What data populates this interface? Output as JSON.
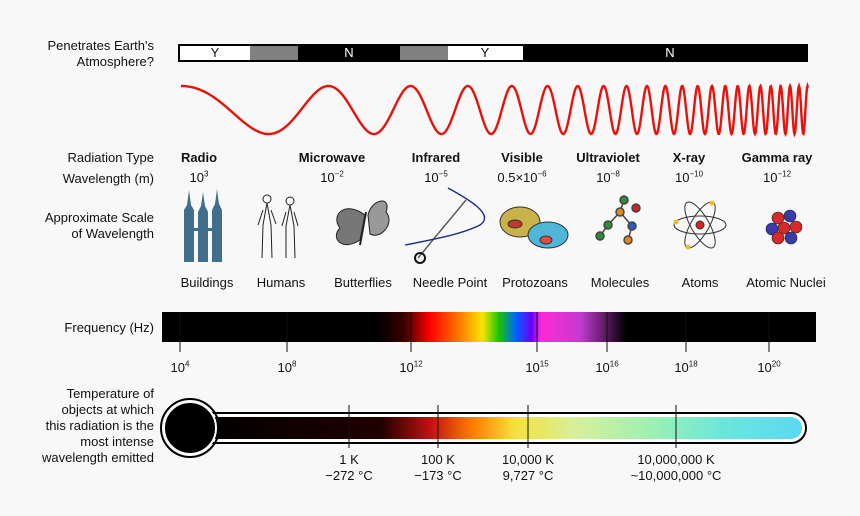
{
  "penetrates": {
    "label_line1": "Penetrates Earth's",
    "label_line2": "Atmosphere?",
    "segments": [
      "Y",
      "N",
      "Y",
      "N"
    ]
  },
  "labels": {
    "radiation_type": "Radiation Type",
    "wavelength": "Wavelength (m)",
    "scale_line1": "Approximate Scale",
    "scale_line2": "of Wavelength",
    "frequency": "Frequency (Hz)",
    "temp_line1": "Temperature of",
    "temp_line2": "objects at which",
    "temp_line3": "this radiation is the",
    "temp_line4": "most intense",
    "temp_line5": "wavelength emitted"
  },
  "radiation": [
    {
      "name": "Radio",
      "base": "10",
      "exp": "3"
    },
    {
      "name": "Microwave",
      "base": "10",
      "exp": "−2"
    },
    {
      "name": "Infrared",
      "base": "10",
      "exp": "−5"
    },
    {
      "name": "Visible",
      "base": "0.5×10",
      "exp": "−6"
    },
    {
      "name": "Ultraviolet",
      "base": "10",
      "exp": "−8"
    },
    {
      "name": "X-ray",
      "base": "10",
      "exp": "−10"
    },
    {
      "name": "Gamma ray",
      "base": "10",
      "exp": "−12"
    }
  ],
  "scale_items": [
    "Buildings",
    "Humans",
    "Butterflies",
    "Needle Point",
    "Protozoans",
    "Molecules",
    "Atoms",
    "Atomic Nuclei"
  ],
  "scale_icons": [
    "buildings-icon",
    "humans-icon",
    "butterfly-icon",
    "needle-icon",
    "protozoa-icon",
    "molecule-icon",
    "atom-icon",
    "nucleus-icon"
  ],
  "frequency_ticks": [
    {
      "base": "10",
      "exp": "4"
    },
    {
      "base": "10",
      "exp": "8"
    },
    {
      "base": "10",
      "exp": "12"
    },
    {
      "base": "10",
      "exp": "15"
    },
    {
      "base": "10",
      "exp": "16"
    },
    {
      "base": "10",
      "exp": "18"
    },
    {
      "base": "10",
      "exp": "20"
    }
  ],
  "temperature_ticks": [
    {
      "line1": "1 K",
      "line2": "−272 °C"
    },
    {
      "line1": "100 K",
      "line2": "−173 °C"
    },
    {
      "line1": "10,000 K",
      "line2": "9,727 °C"
    },
    {
      "line1": "10,000,000 K",
      "line2": "~10,000,000 °C"
    }
  ],
  "colors": {
    "wave": "#e8120c",
    "bar": "#000000",
    "partial": "#7f7f7f"
  }
}
